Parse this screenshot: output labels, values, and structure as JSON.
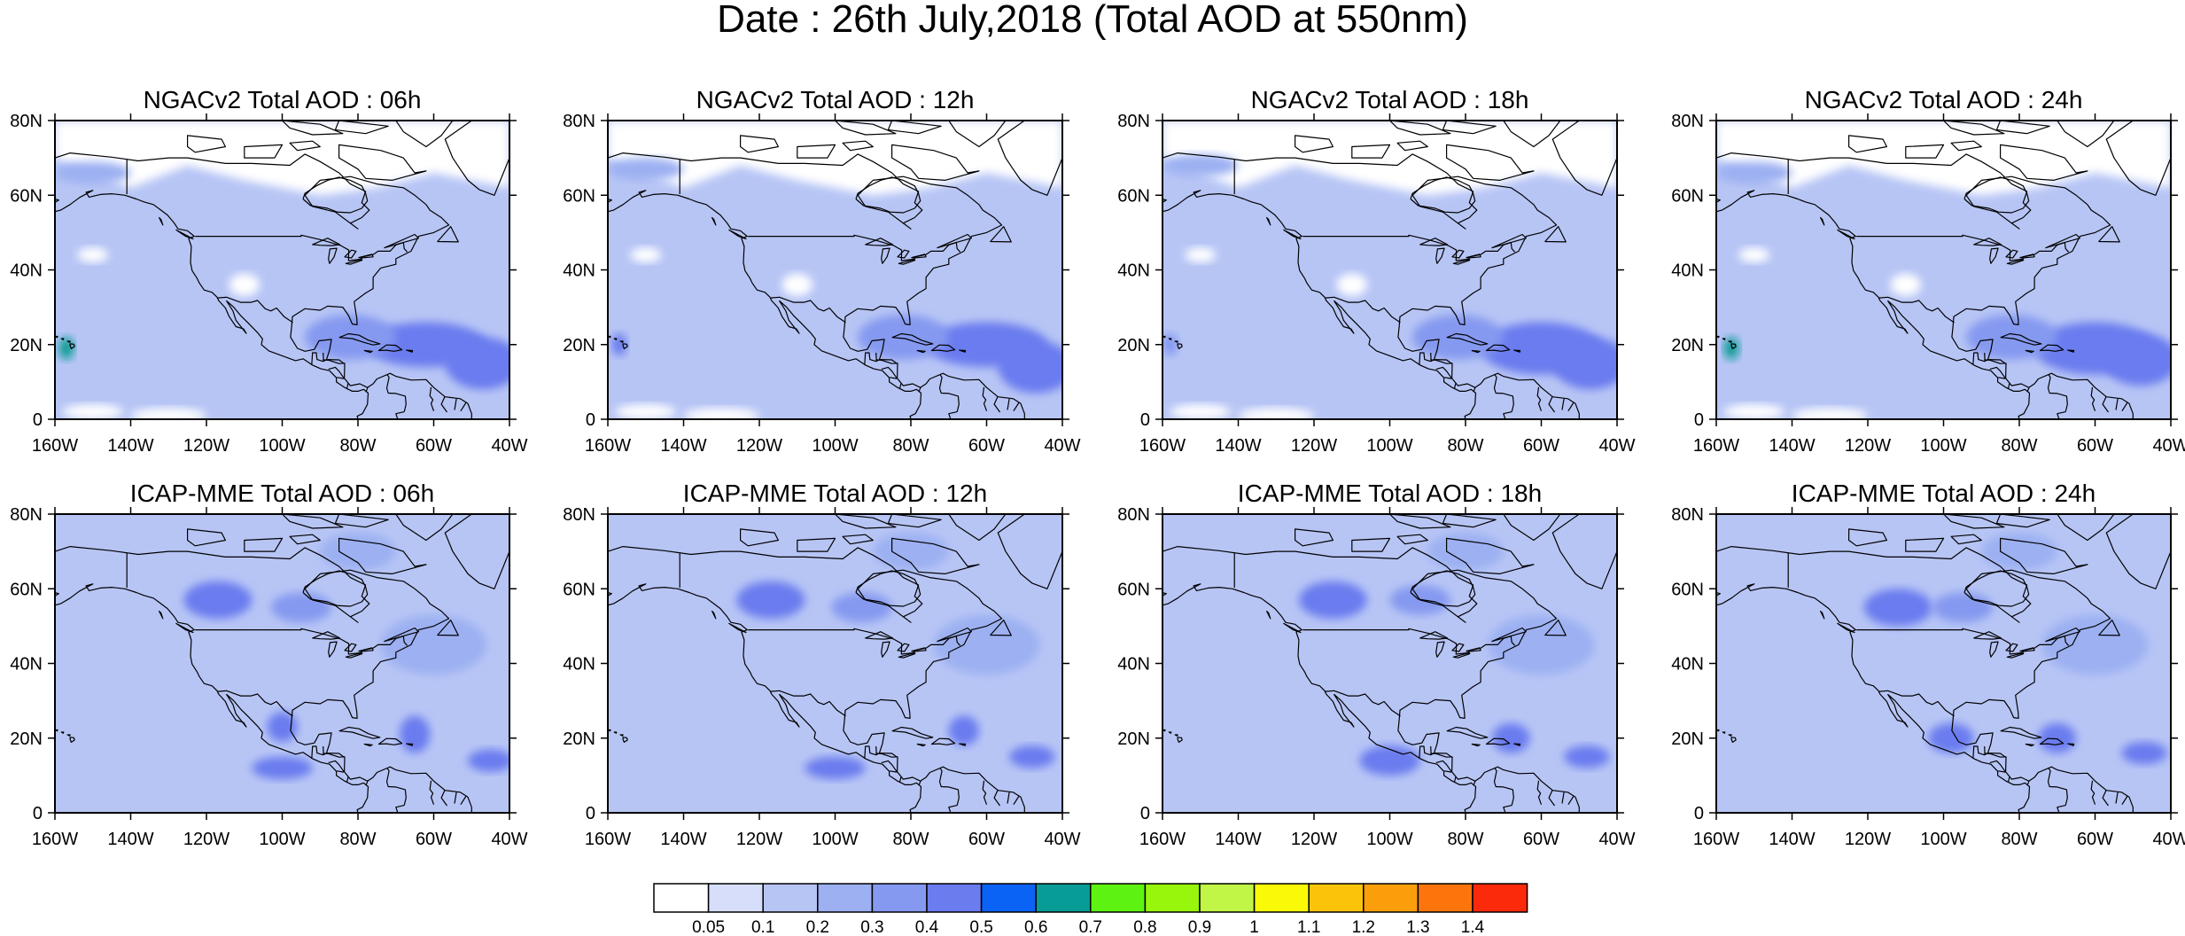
{
  "figure": {
    "title": "Date : 26th July,2018 (Total AOD at 550nm)"
  },
  "chart_data": {
    "type": "heatmap",
    "title": "Date : 26th July,2018 (Total AOD at 550nm)",
    "lon_range": [
      -160,
      -40
    ],
    "lat_range": [
      0,
      80
    ],
    "x_tick_labels": [
      "160W",
      "140W",
      "120W",
      "100W",
      "80W",
      "60W",
      "40W"
    ],
    "x_tick_values": [
      -160,
      -140,
      -120,
      -100,
      -80,
      -60,
      -40
    ],
    "y_tick_labels": [
      "0",
      "20N",
      "40N",
      "60N",
      "80N"
    ],
    "y_tick_values": [
      0,
      20,
      40,
      60,
      80
    ],
    "panels": [
      {
        "title": "NGACv2 Total AOD : 06h",
        "model": "NGACv2",
        "hour": "06h",
        "features": [
          {
            "lon": -62,
            "lat": 20,
            "rx": 16,
            "ry": 6,
            "value": 0.45
          },
          {
            "lon": -47,
            "lat": 15,
            "rx": 10,
            "ry": 7,
            "value": 0.45
          },
          {
            "lon": -82,
            "lat": 22,
            "rx": 12,
            "ry": 6,
            "value": 0.3
          },
          {
            "lon": -157,
            "lat": 19,
            "rx": 2,
            "ry": 3,
            "value": 0.6
          },
          {
            "lon": -150,
            "lat": 66,
            "rx": 10,
            "ry": 3,
            "value": 0.25
          }
        ]
      },
      {
        "title": "NGACv2 Total AOD : 12h",
        "model": "NGACv2",
        "hour": "12h",
        "features": [
          {
            "lon": -60,
            "lat": 20,
            "rx": 16,
            "ry": 6,
            "value": 0.45
          },
          {
            "lon": -47,
            "lat": 14,
            "rx": 10,
            "ry": 7,
            "value": 0.45
          },
          {
            "lon": -82,
            "lat": 22,
            "rx": 12,
            "ry": 6,
            "value": 0.3
          },
          {
            "lon": -157,
            "lat": 20,
            "rx": 2,
            "ry": 3,
            "value": 0.4
          },
          {
            "lon": -150,
            "lat": 67,
            "rx": 10,
            "ry": 3,
            "value": 0.25
          }
        ]
      },
      {
        "title": "NGACv2 Total AOD : 18h",
        "model": "NGACv2",
        "hour": "18h",
        "features": [
          {
            "lon": -60,
            "lat": 19,
            "rx": 16,
            "ry": 7,
            "value": 0.45
          },
          {
            "lon": -47,
            "lat": 15,
            "rx": 10,
            "ry": 7,
            "value": 0.45
          },
          {
            "lon": -82,
            "lat": 22,
            "rx": 12,
            "ry": 6,
            "value": 0.3
          },
          {
            "lon": -158,
            "lat": 20,
            "rx": 2,
            "ry": 3,
            "value": 0.35
          },
          {
            "lon": -150,
            "lat": 68,
            "rx": 10,
            "ry": 3,
            "value": 0.25
          }
        ]
      },
      {
        "title": "NGACv2 Total AOD : 24h",
        "model": "NGACv2",
        "hour": "24h",
        "features": [
          {
            "lon": -60,
            "lat": 19,
            "rx": 16,
            "ry": 7,
            "value": 0.45
          },
          {
            "lon": -48,
            "lat": 16,
            "rx": 10,
            "ry": 7,
            "value": 0.45
          },
          {
            "lon": -82,
            "lat": 22,
            "rx": 12,
            "ry": 6,
            "value": 0.3
          },
          {
            "lon": -156,
            "lat": 19,
            "rx": 2,
            "ry": 3,
            "value": 0.6
          },
          {
            "lon": -150,
            "lat": 66,
            "rx": 10,
            "ry": 3,
            "value": 0.25
          }
        ]
      },
      {
        "title": "ICAP-MME Total AOD : 06h",
        "model": "ICAP-MME",
        "hour": "06h",
        "features": [
          {
            "lon": -117,
            "lat": 57,
            "rx": 9,
            "ry": 5,
            "value": 0.45
          },
          {
            "lon": -95,
            "lat": 55,
            "rx": 8,
            "ry": 4,
            "value": 0.35
          },
          {
            "lon": -100,
            "lat": 23,
            "rx": 4,
            "ry": 4,
            "value": 0.45
          },
          {
            "lon": -65,
            "lat": 21,
            "rx": 4,
            "ry": 5,
            "value": 0.45
          },
          {
            "lon": -100,
            "lat": 12,
            "rx": 8,
            "ry": 3,
            "value": 0.4
          },
          {
            "lon": -45,
            "lat": 14,
            "rx": 6,
            "ry": 3,
            "value": 0.45
          }
        ]
      },
      {
        "title": "ICAP-MME Total AOD : 12h",
        "model": "ICAP-MME",
        "hour": "12h",
        "features": [
          {
            "lon": -117,
            "lat": 57,
            "rx": 9,
            "ry": 5,
            "value": 0.45
          },
          {
            "lon": -93,
            "lat": 55,
            "rx": 8,
            "ry": 4,
            "value": 0.35
          },
          {
            "lon": -100,
            "lat": 12,
            "rx": 8,
            "ry": 3,
            "value": 0.4
          },
          {
            "lon": -66,
            "lat": 22,
            "rx": 4,
            "ry": 4,
            "value": 0.45
          },
          {
            "lon": -48,
            "lat": 15,
            "rx": 6,
            "ry": 3,
            "value": 0.45
          }
        ]
      },
      {
        "title": "ICAP-MME Total AOD : 18h",
        "model": "ICAP-MME",
        "hour": "18h",
        "features": [
          {
            "lon": -115,
            "lat": 57,
            "rx": 9,
            "ry": 5,
            "value": 0.45
          },
          {
            "lon": -92,
            "lat": 57,
            "rx": 8,
            "ry": 4,
            "value": 0.35
          },
          {
            "lon": -100,
            "lat": 14,
            "rx": 8,
            "ry": 4,
            "value": 0.4
          },
          {
            "lon": -68,
            "lat": 20,
            "rx": 5,
            "ry": 4,
            "value": 0.4
          },
          {
            "lon": -48,
            "lat": 15,
            "rx": 6,
            "ry": 3,
            "value": 0.45
          }
        ]
      },
      {
        "title": "ICAP-MME Total AOD : 24h",
        "model": "ICAP-MME",
        "hour": "24h",
        "features": [
          {
            "lon": -112,
            "lat": 55,
            "rx": 9,
            "ry": 5,
            "value": 0.45
          },
          {
            "lon": -95,
            "lat": 55,
            "rx": 8,
            "ry": 4,
            "value": 0.35
          },
          {
            "lon": -98,
            "lat": 20,
            "rx": 6,
            "ry": 4,
            "value": 0.4
          },
          {
            "lon": -70,
            "lat": 20,
            "rx": 5,
            "ry": 4,
            "value": 0.4
          },
          {
            "lon": -47,
            "lat": 16,
            "rx": 6,
            "ry": 3,
            "value": 0.45
          }
        ]
      }
    ],
    "colorbar": {
      "levels": [
        "0.05",
        "0.1",
        "0.2",
        "0.3",
        "0.4",
        "0.5",
        "0.6",
        "0.7",
        "0.8",
        "0.9",
        "1",
        "1.1",
        "1.2",
        "1.3",
        "1.4"
      ],
      "colors": [
        "#ffffff",
        "#d6defa",
        "#b7c5f5",
        "#9cb0f2",
        "#8599f0",
        "#6b7cef",
        "#0b63f5",
        "#079c96",
        "#5ef212",
        "#98f50c",
        "#c1f546",
        "#fafa07",
        "#fbc40b",
        "#fa9e0b",
        "#fb750c",
        "#fb2a0b"
      ]
    },
    "background_levels": {
      "ngac_ocean": 0.15,
      "ngac_land": 0.15,
      "ngac_arctic": 0.0,
      "icap_base": 0.15
    }
  }
}
